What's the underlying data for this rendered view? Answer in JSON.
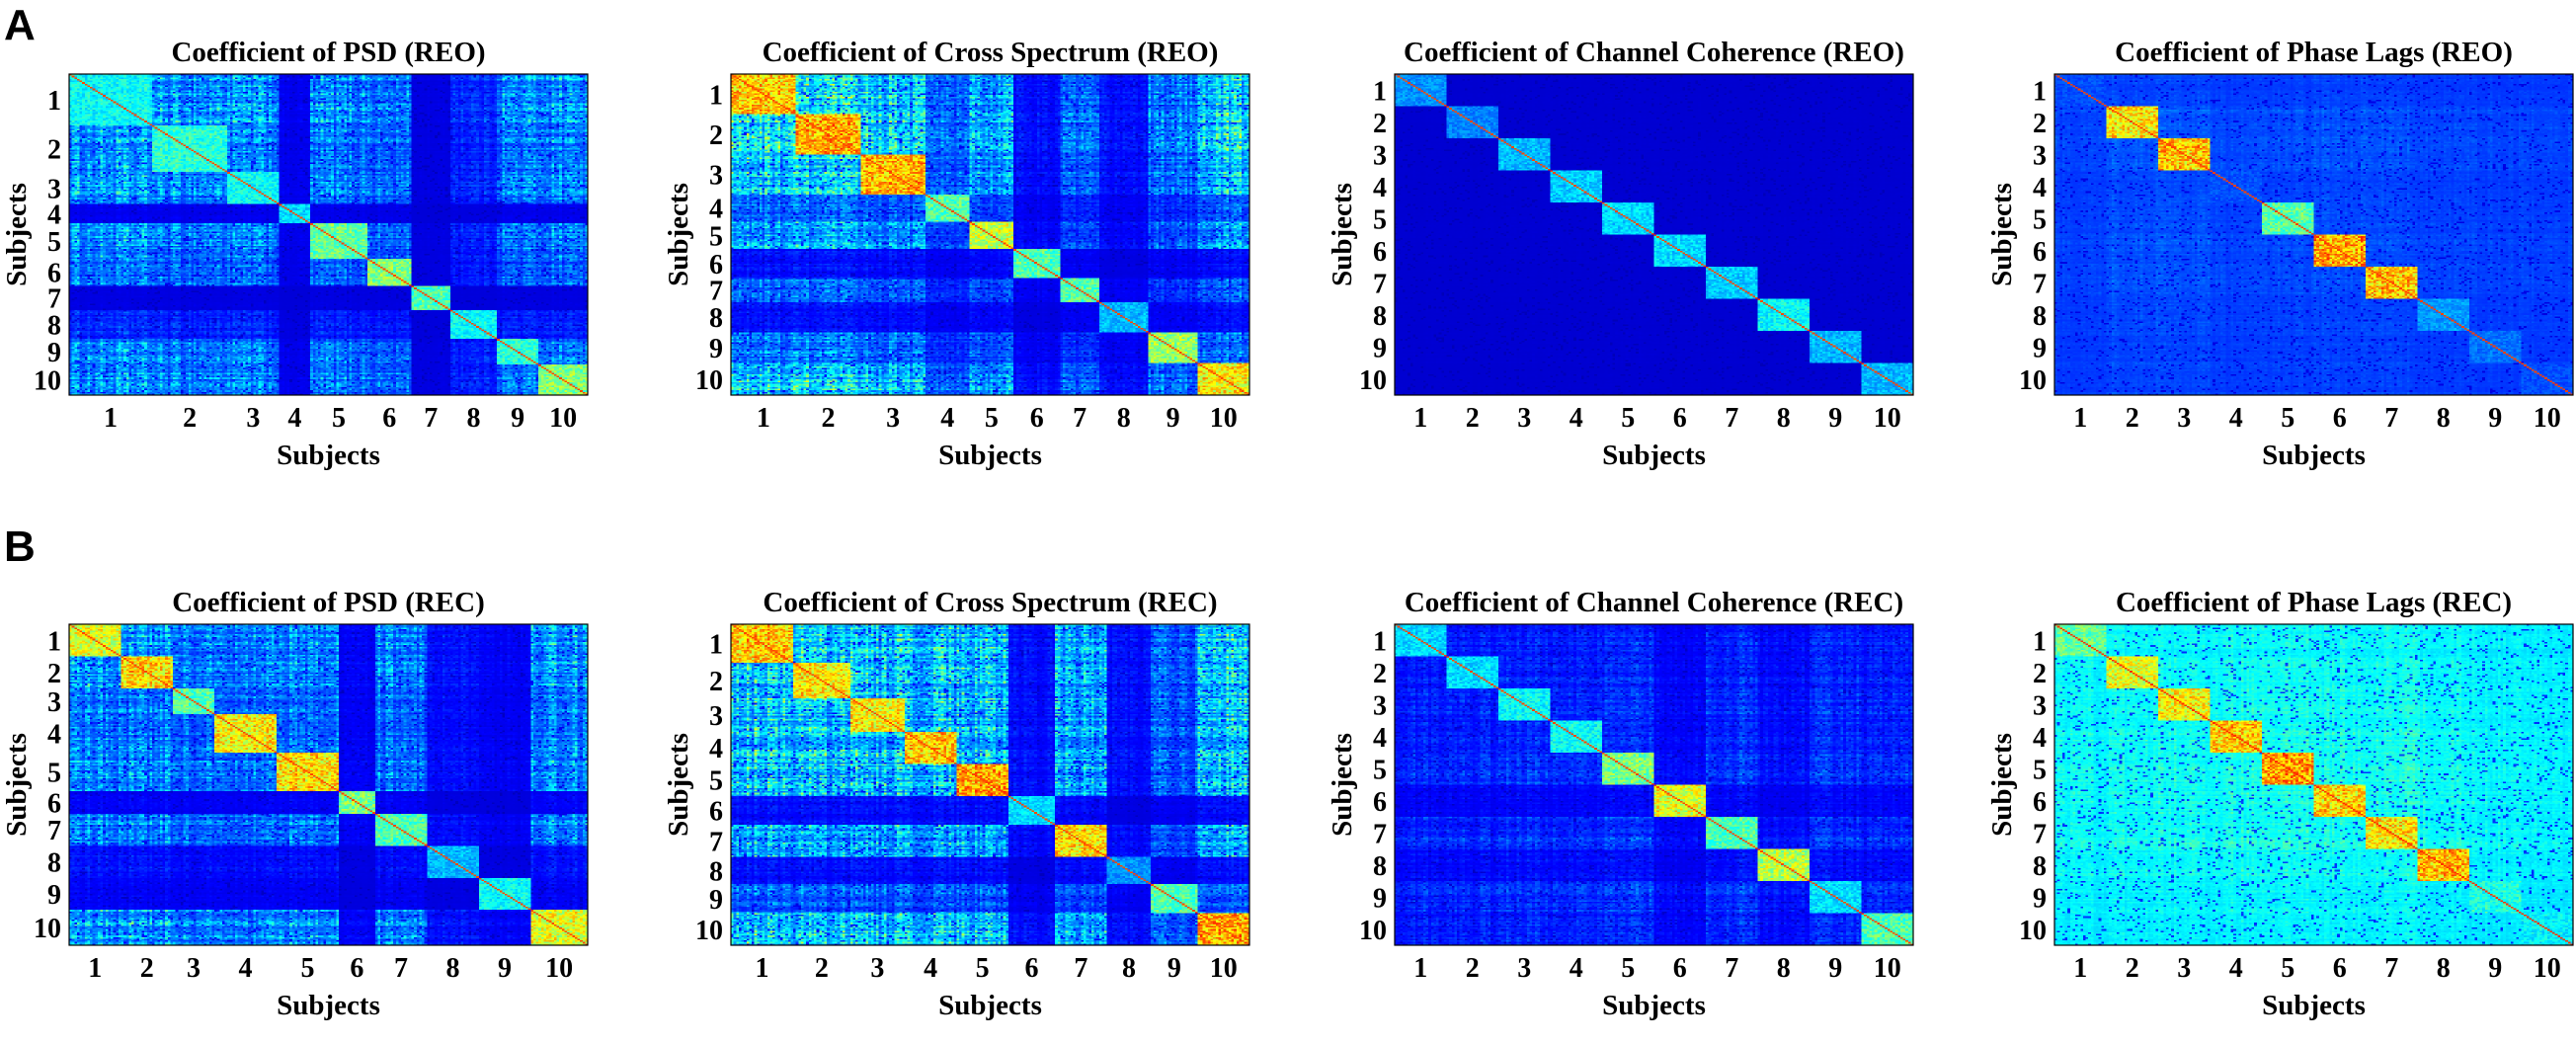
{
  "panel_labels": [
    "A",
    "B"
  ],
  "chart_data": [
    {
      "type": "heatmap",
      "panel": "A",
      "title": "Coefficient of PSD (REO)",
      "xlabel": "Subjects",
      "ylabel": "Subjects",
      "categories": [
        "1",
        "2",
        "3",
        "4",
        "5",
        "6",
        "7",
        "8",
        "9",
        "10"
      ],
      "block_sizes": [
        2.4,
        2.2,
        1.5,
        0.9,
        1.6,
        1.3,
        1.1,
        1.4,
        1.2,
        1.4
      ],
      "block_intensity": [
        0.45,
        0.5,
        0.45,
        0.4,
        0.58,
        0.62,
        0.55,
        0.45,
        0.5,
        0.62
      ],
      "row_activity": [
        0.9,
        0.8,
        0.8,
        0.1,
        0.75,
        0.65,
        0.05,
        0.35,
        0.75,
        0.8
      ],
      "colorscale": "jet",
      "background_level": 0.05
    },
    {
      "type": "heatmap",
      "panel": "A",
      "title": "Coefficient of Cross Spectrum (REO)",
      "xlabel": "Subjects",
      "ylabel": "Subjects",
      "categories": [
        "1",
        "2",
        "3",
        "4",
        "5",
        "6",
        "7",
        "8",
        "9",
        "10"
      ],
      "block_sizes": [
        1.6,
        1.6,
        1.6,
        1.1,
        1.1,
        1.1,
        1.0,
        1.2,
        1.2,
        1.3
      ],
      "block_intensity": [
        0.85,
        0.88,
        0.88,
        0.55,
        0.7,
        0.55,
        0.55,
        0.35,
        0.65,
        0.8
      ],
      "row_activity": [
        1.0,
        1.0,
        0.95,
        0.5,
        0.75,
        0.2,
        0.5,
        0.2,
        0.6,
        0.95
      ],
      "colorscale": "jet",
      "background_level": 0.05
    },
    {
      "type": "heatmap",
      "panel": "A",
      "title": "Coefficient of Channel Coherence (REO)",
      "xlabel": "Subjects",
      "ylabel": "Subjects",
      "categories": [
        "1",
        "2",
        "3",
        "4",
        "5",
        "6",
        "7",
        "8",
        "9",
        "10"
      ],
      "block_sizes": [
        1.0,
        1.0,
        1.0,
        1.0,
        1.0,
        1.0,
        1.0,
        1.0,
        1.0,
        1.0
      ],
      "block_intensity": [
        0.3,
        0.28,
        0.35,
        0.38,
        0.4,
        0.4,
        0.38,
        0.45,
        0.35,
        0.35
      ],
      "row_activity": [
        0.1,
        0.1,
        0.12,
        0.12,
        0.15,
        0.12,
        0.1,
        0.12,
        0.15,
        0.1
      ],
      "colorscale": "jet",
      "background_level": 0.04
    },
    {
      "type": "heatmap",
      "panel": "A",
      "title": "Coefficient of Phase Lags (REO)",
      "xlabel": "Subjects",
      "ylabel": "Subjects",
      "categories": [
        "1",
        "2",
        "3",
        "4",
        "5",
        "6",
        "7",
        "8",
        "9",
        "10"
      ],
      "block_sizes": [
        1.0,
        1.0,
        1.0,
        1.0,
        1.0,
        1.0,
        1.0,
        1.0,
        1.0,
        1.0
      ],
      "block_intensity": [
        0.2,
        0.8,
        0.85,
        0.2,
        0.55,
        0.88,
        0.85,
        0.3,
        0.25,
        0.2
      ],
      "row_activity": [
        0.3,
        0.45,
        0.45,
        0.3,
        0.35,
        0.4,
        0.4,
        0.3,
        0.3,
        0.3
      ],
      "colorscale": "jet",
      "background_level": 0.13
    },
    {
      "type": "heatmap",
      "panel": "B",
      "title": "Coefficient of PSD (REC)",
      "xlabel": "Subjects",
      "ylabel": "Subjects",
      "categories": [
        "1",
        "2",
        "3",
        "4",
        "5",
        "6",
        "7",
        "8",
        "9",
        "10"
      ],
      "block_sizes": [
        1.0,
        1.0,
        0.8,
        1.2,
        1.2,
        0.7,
        1.0,
        1.0,
        1.0,
        1.1
      ],
      "block_intensity": [
        0.75,
        0.82,
        0.55,
        0.8,
        0.82,
        0.6,
        0.55,
        0.35,
        0.45,
        0.75
      ],
      "row_activity": [
        0.9,
        0.85,
        0.7,
        0.75,
        0.8,
        0.15,
        0.75,
        0.25,
        0.15,
        0.9
      ],
      "colorscale": "jet",
      "background_level": 0.05
    },
    {
      "type": "heatmap",
      "panel": "B",
      "title": "Coefficient of Cross Spectrum (REC)",
      "xlabel": "Subjects",
      "ylabel": "Subjects",
      "categories": [
        "1",
        "2",
        "3",
        "4",
        "5",
        "6",
        "7",
        "8",
        "9",
        "10"
      ],
      "block_sizes": [
        1.2,
        1.1,
        1.1,
        1.0,
        1.0,
        0.9,
        1.0,
        0.9,
        0.9,
        1.0
      ],
      "block_intensity": [
        0.85,
        0.8,
        0.8,
        0.85,
        0.9,
        0.4,
        0.82,
        0.3,
        0.55,
        0.9
      ],
      "row_activity": [
        1.0,
        0.95,
        0.95,
        0.95,
        0.95,
        0.2,
        0.85,
        0.2,
        0.5,
        1.0
      ],
      "colorscale": "jet",
      "background_level": 0.05
    },
    {
      "type": "heatmap",
      "panel": "B",
      "title": "Coefficient of Channel Coherence (REC)",
      "xlabel": "Subjects",
      "ylabel": "Subjects",
      "categories": [
        "1",
        "2",
        "3",
        "4",
        "5",
        "6",
        "7",
        "8",
        "9",
        "10"
      ],
      "block_sizes": [
        1.0,
        1.0,
        1.0,
        1.0,
        1.0,
        1.0,
        1.0,
        1.0,
        1.0,
        1.0
      ],
      "block_intensity": [
        0.4,
        0.4,
        0.45,
        0.45,
        0.6,
        0.75,
        0.55,
        0.7,
        0.4,
        0.55
      ],
      "row_activity": [
        0.5,
        0.5,
        0.55,
        0.5,
        0.6,
        0.3,
        0.6,
        0.35,
        0.55,
        0.5
      ],
      "colorscale": "jet",
      "background_level": 0.05
    },
    {
      "type": "heatmap",
      "panel": "B",
      "title": "Coefficient of Phase Lags (REC)",
      "xlabel": "Subjects",
      "ylabel": "Subjects",
      "categories": [
        "1",
        "2",
        "3",
        "4",
        "5",
        "6",
        "7",
        "8",
        "9",
        "10"
      ],
      "block_sizes": [
        1.0,
        1.0,
        1.0,
        1.0,
        1.0,
        1.0,
        1.0,
        1.0,
        1.0,
        1.0
      ],
      "block_intensity": [
        0.55,
        0.72,
        0.75,
        0.82,
        0.88,
        0.8,
        0.78,
        0.85,
        0.45,
        0.4
      ],
      "row_activity": [
        0.45,
        0.5,
        0.5,
        0.55,
        0.55,
        0.55,
        0.55,
        0.5,
        0.4,
        0.35
      ],
      "colorscale": "jet",
      "background_level": 0.3
    }
  ]
}
